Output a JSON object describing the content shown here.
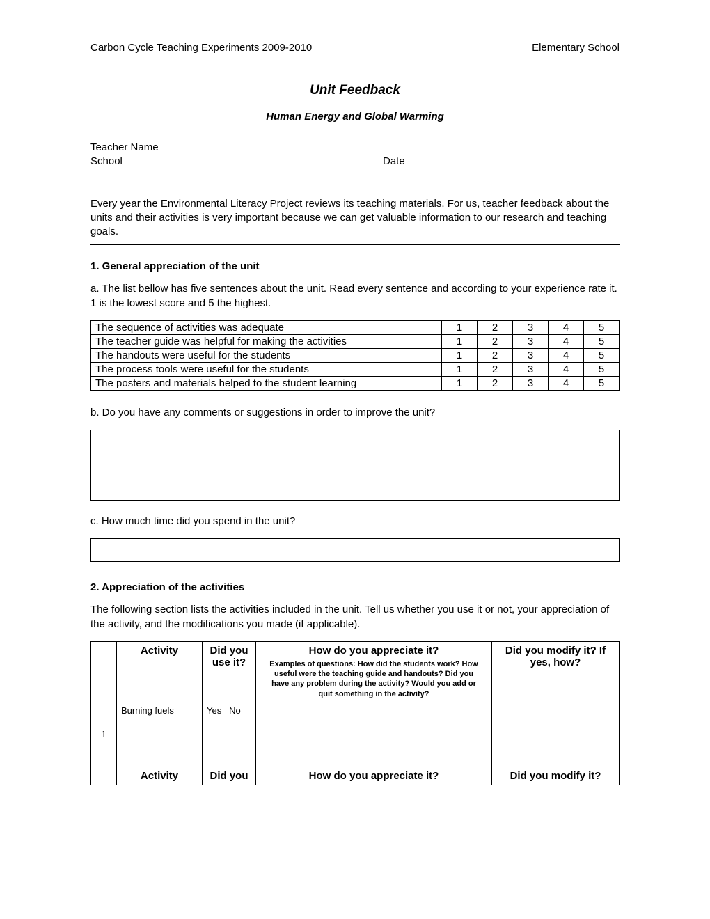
{
  "header": {
    "left": "Carbon Cycle Teaching Experiments 2009-2010",
    "right": "Elementary School"
  },
  "title": "Unit Feedback",
  "subtitle": "Human Energy and Global Warming",
  "meta": {
    "teacher_label": "Teacher Name",
    "school_label": "School",
    "date_label": "Date"
  },
  "intro": "Every year the Environmental Literacy Project reviews its teaching materials. For us, teacher feedback about the units and their activities is very important because we can get valuable information to our research and teaching goals.",
  "sections": {
    "s1": {
      "title": "1. General appreciation of the unit",
      "a_text": "a. The list bellow has five sentences about the unit. Read every sentence and according to your experience rate it. 1 is the lowest score and 5 the highest.",
      "rating_rows": [
        "The sequence of activities was adequate",
        "The teacher guide was helpful for making the activities",
        "The handouts were useful for the students",
        "The process tools were useful for the students",
        "The posters and materials helped to the student learning"
      ],
      "rating_scale": [
        "1",
        "2",
        "3",
        "4",
        "5"
      ],
      "b_text": "b. Do you have any comments or suggestions in order to improve the unit?",
      "c_text": "c. How much time did you spend in the unit?"
    },
    "s2": {
      "title": "2. Appreciation of the activities",
      "intro": "The following section lists the activities included in the unit. Tell us whether you use it or not, your appreciation of the activity, and the modifications you made (if applicable).",
      "headers": {
        "activity": "Activity",
        "use": "Did you use it?",
        "appreciate": "How do you appreciate it?",
        "appreciate_sub": "Examples of questions: How did the students work? How useful were the teaching guide and handouts? Did you have any problem during the activity? Would you add or quit something in the activity?",
        "modify": "Did you modify it? If yes, how?"
      },
      "rows": [
        {
          "n": "1",
          "activity": "Burning fuels",
          "yes": "Yes",
          "no": "No"
        }
      ],
      "footer_headers": {
        "activity": "Activity",
        "use": "Did you",
        "appreciate": "How do you appreciate it?",
        "modify": "Did you modify it?"
      }
    }
  },
  "colors": {
    "text": "#000000",
    "bg": "#ffffff",
    "border": "#000000"
  }
}
